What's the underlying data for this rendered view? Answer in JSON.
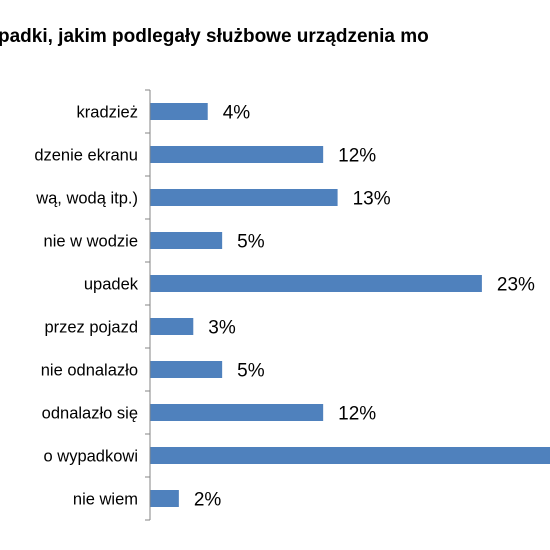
{
  "chart_data": {
    "type": "bar",
    "orientation": "horizontal",
    "title": "padki, jakim podlegały służbowe urządzenia mo",
    "categories": [
      "kradzież",
      "dzenie ekranu",
      "wą, wodą itp.)",
      "nie w wodzie",
      "upadek",
      "przez pojazd",
      "nie odnalazło",
      "odnalazło się",
      "o wypadkowi",
      "nie wiem"
    ],
    "values": [
      4,
      12,
      13,
      5,
      23,
      3,
      5,
      12,
      null,
      2
    ],
    "data_labels": [
      "4%",
      "12%",
      "13%",
      "5%",
      "23%",
      "3%",
      "5%",
      "12%",
      "",
      "2%"
    ],
    "bar_color": "#4f81bd",
    "xlim": [
      0,
      36
    ],
    "grid": false,
    "legend": "none"
  }
}
